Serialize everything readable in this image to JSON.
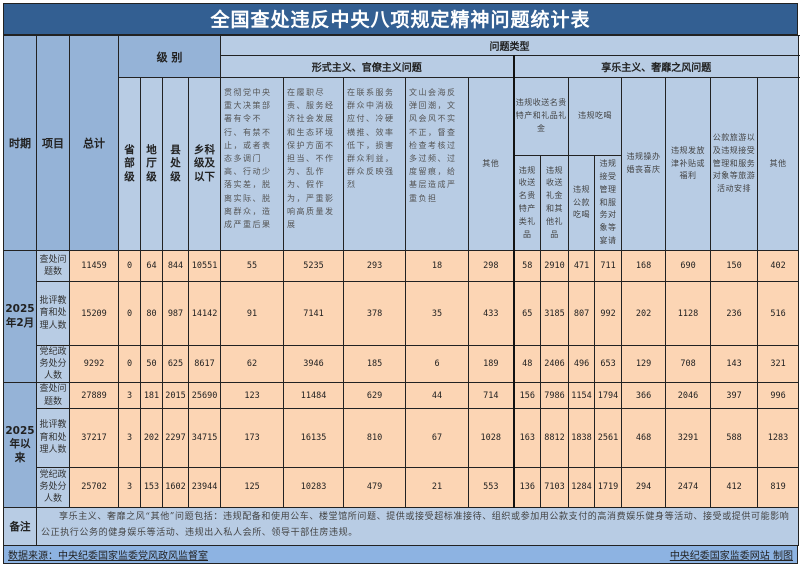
{
  "title": "全国查处违反中央八项规定精神问题统计表",
  "header": {
    "period": "时期",
    "item": "项目",
    "total": "总计",
    "level_group": "级 别",
    "levels": [
      "省部级",
      "地厅级",
      "县处级",
      "乡科级及以下"
    ],
    "problem_type": "问题类型",
    "formalism": {
      "label": "形式主义、官僚主义问题",
      "items": [
        "贯彻党中央重大决策部署有令不行、有禁不止，或者表态多调门高、行动少落实差，脱离实际、脱离群众，造成严重后果",
        "在履职尽责、服务经济社会发展和生态环境保护方面不担当、不作为、乱作为、假作为，严重影响高质量发展",
        "在联系服务群众中消极应付、冷硬横推、效率低下，损害群众利益，群众反映强烈",
        "文山会海反弹回潮，文风会风不实不正，督查检查考核过多过频、过度留痕，给基层造成严重负担",
        "其他"
      ]
    },
    "hedonism": {
      "label": "享乐主义、奢靡之风问题",
      "gifts": {
        "label": "违规收送名贵特产和礼品礼金",
        "subs": [
          "违规收送名贵特产类礼品",
          "违规收送礼金和其他礼品"
        ]
      },
      "dining": {
        "label": "违规吃喝",
        "subs": [
          "违规公款吃喝",
          "违规接受管理和服务对象等宴请"
        ]
      },
      "others": [
        "违规操办婚丧喜庆",
        "违规发放津补贴或福利",
        "公款旅游以及违规接受管理和服务对象等旅游活动安排",
        "其他"
      ]
    }
  },
  "periods": [
    {
      "label": "2025年2月",
      "rows": [
        {
          "item": "查处问题数",
          "values": [
            11459,
            0,
            64,
            844,
            10551,
            55,
            5235,
            293,
            18,
            298,
            58,
            2910,
            471,
            711,
            168,
            690,
            150,
            402
          ]
        },
        {
          "item": "批评教育和处理人数",
          "values": [
            15209,
            0,
            80,
            987,
            14142,
            91,
            7141,
            378,
            35,
            433,
            65,
            3185,
            807,
            992,
            202,
            1128,
            236,
            516
          ]
        },
        {
          "item": "党纪政务处分人数",
          "values": [
            9292,
            0,
            50,
            625,
            8617,
            62,
            3946,
            185,
            6,
            189,
            48,
            2406,
            496,
            653,
            129,
            708,
            143,
            321
          ]
        }
      ]
    },
    {
      "label": "2025年以来",
      "rows": [
        {
          "item": "查处问题数",
          "values": [
            27889,
            3,
            181,
            2015,
            25690,
            123,
            11484,
            629,
            44,
            714,
            156,
            7986,
            1154,
            1794,
            366,
            2046,
            397,
            996
          ]
        },
        {
          "item": "批评教育和处理人数",
          "values": [
            37217,
            3,
            202,
            2297,
            34715,
            173,
            16135,
            810,
            67,
            1028,
            163,
            8812,
            1838,
            2561,
            468,
            3291,
            588,
            1283
          ]
        },
        {
          "item": "党纪政务处分人数",
          "values": [
            25702,
            3,
            153,
            1602,
            23944,
            125,
            10283,
            479,
            21,
            553,
            136,
            7103,
            1284,
            1719,
            294,
            2474,
            412,
            819
          ]
        }
      ]
    }
  ],
  "note": {
    "label": "备注",
    "text": "享乐主义、奢靡之风“其他”问题包括：违规配备和使用公车、楼堂馆所问题、提供或接受超标准接待、组织或参加用公款支付的高消费娱乐健身等活动、接受或提供可能影响公正执行公务的健身娱乐等活动、违规出入私人会所、领导干部住房违规。"
  },
  "footer": {
    "source": "数据来源：中央纪委国家监委党风政风监督室",
    "credit": "中央纪委国家监委网站 制图"
  },
  "colors": {
    "title_bg": "#335f92",
    "header_bg": "#b8cce4",
    "header_dark_bg": "#95b3d7",
    "data_bg": "#fcd5b4",
    "footer_bg": "#8db3e2"
  }
}
